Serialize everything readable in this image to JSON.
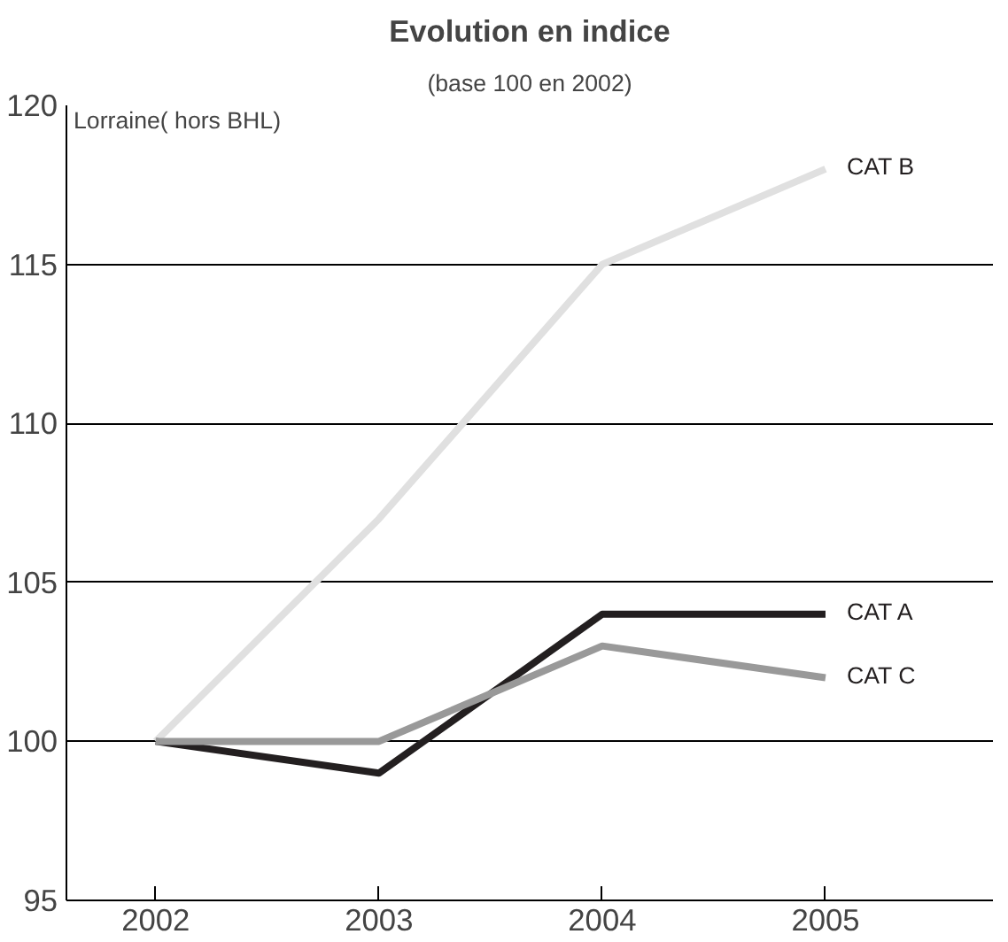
{
  "chart_data": {
    "type": "line",
    "title": "Evolution en indice",
    "subtitle": "(base 100 en 2002)",
    "annotations": [
      "Lorraine( hors BHL)"
    ],
    "x": [
      2002,
      2003,
      2004,
      2005
    ],
    "xlim": [
      2001.6,
      2005.75
    ],
    "xticks": [
      2002,
      2003,
      2004,
      2005
    ],
    "ylim": [
      95,
      120
    ],
    "yticks": [
      95,
      100,
      105,
      110,
      115,
      120
    ],
    "grid": "y",
    "marker": "none",
    "line_style": "solid",
    "series": [
      {
        "name": "CAT B",
        "color": "#e0e0e0",
        "values": [
          100,
          107,
          115,
          118
        ]
      },
      {
        "name": "CAT A",
        "color": "#231f20",
        "values": [
          100,
          99,
          104,
          104
        ]
      },
      {
        "name": "CAT C",
        "color": "#999999",
        "values": [
          100,
          100,
          103,
          102
        ]
      }
    ]
  }
}
